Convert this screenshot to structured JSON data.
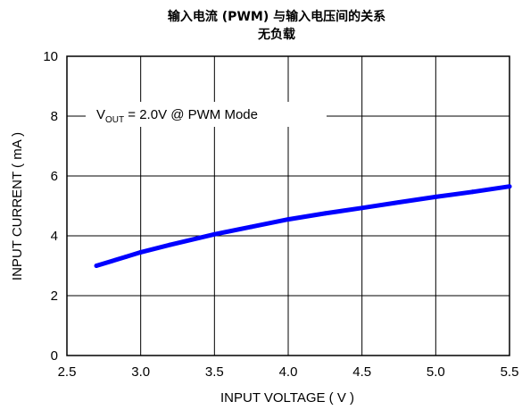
{
  "chart_data": {
    "type": "line",
    "title": "输入电流 (PWM) 与输入电压间的关系",
    "subtitle": "无负载",
    "xlabel": "INPUT VOLTAGE ( V )",
    "ylabel": "INPUT CURRENT ( mA )",
    "xlim": [
      2.5,
      5.5
    ],
    "ylim": [
      0,
      10
    ],
    "x_ticks": [
      "2.5",
      "3.0",
      "3.5",
      "4.0",
      "4.5",
      "5.0",
      "5.5"
    ],
    "y_ticks": [
      "0",
      "2",
      "4",
      "6",
      "8",
      "10"
    ],
    "grid": true,
    "annotation": {
      "v_prefix": "V",
      "v_subscript": "OUT",
      "text": " = 2.0V @ PWM Mode"
    },
    "series": [
      {
        "color": "#0000ff",
        "points": [
          [
            2.7,
            3.0
          ],
          [
            2.9,
            3.3
          ],
          [
            3.0,
            3.45
          ],
          [
            3.2,
            3.7
          ],
          [
            3.5,
            4.05
          ],
          [
            3.75,
            4.3
          ],
          [
            4.0,
            4.55
          ],
          [
            4.25,
            4.75
          ],
          [
            4.5,
            4.93
          ],
          [
            4.75,
            5.12
          ],
          [
            5.0,
            5.3
          ],
          [
            5.25,
            5.47
          ],
          [
            5.5,
            5.65
          ]
        ]
      }
    ]
  }
}
